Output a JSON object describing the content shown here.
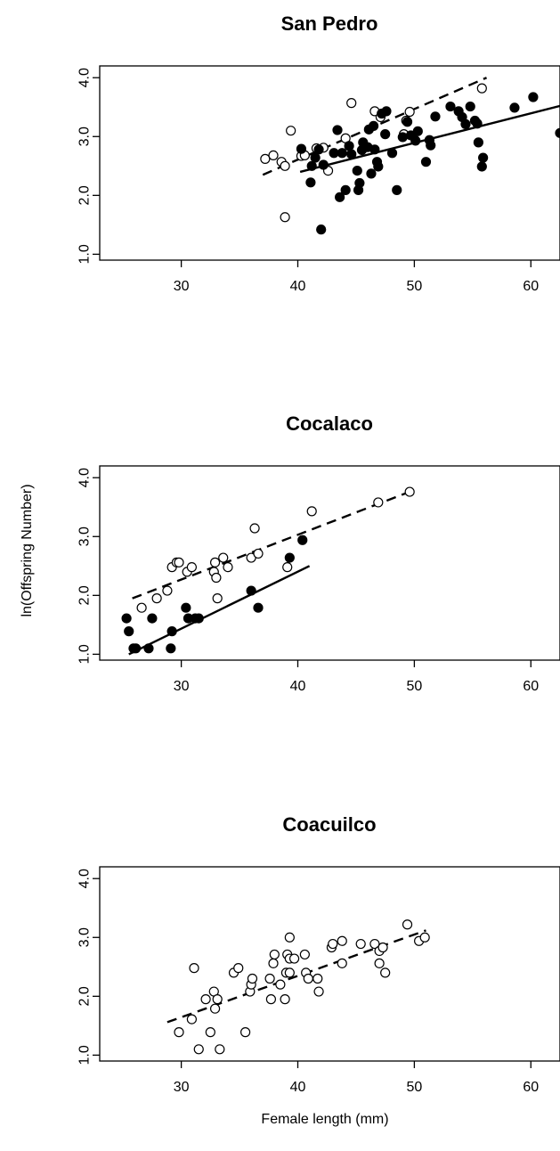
{
  "figure": {
    "ylabel": "ln(Offspring Number)",
    "xlabel": "Female length (mm)"
  },
  "chart_data": [
    {
      "type": "scatter",
      "title": "San Pedro",
      "xlim": [
        23,
        62.5
      ],
      "ylim": [
        0.9,
        4.2
      ],
      "xticks": [
        30,
        40,
        50,
        60
      ],
      "yticks": [
        1.0,
        2.0,
        3.0,
        4.0
      ],
      "ytick_labels": [
        "1.0",
        "2.0",
        "3.0",
        "4.0"
      ],
      "series": [
        {
          "marker": "open",
          "points": [
            [
              37.2,
              2.62
            ],
            [
              37.9,
              2.68
            ],
            [
              38.6,
              2.57
            ],
            [
              38.9,
              2.5
            ],
            [
              38.9,
              1.63
            ],
            [
              39.4,
              3.1
            ],
            [
              40.3,
              2.67
            ],
            [
              40.6,
              2.68
            ],
            [
              41.6,
              2.8
            ],
            [
              42.2,
              2.81
            ],
            [
              42.6,
              2.42
            ],
            [
              44.1,
              2.97
            ],
            [
              44.6,
              3.57
            ],
            [
              46.6,
              3.43
            ],
            [
              47.1,
              3.33
            ],
            [
              49.1,
              3.04
            ],
            [
              49.3,
              3.27
            ],
            [
              49.6,
              3.42
            ],
            [
              55.8,
              3.82
            ]
          ]
        },
        {
          "marker": "filled",
          "points": [
            [
              40.3,
              2.79
            ],
            [
              41.1,
              2.22
            ],
            [
              41.2,
              2.5
            ],
            [
              41.5,
              2.64
            ],
            [
              41.8,
              2.78
            ],
            [
              42.0,
              1.42
            ],
            [
              42.2,
              2.52
            ],
            [
              43.1,
              2.72
            ],
            [
              43.4,
              3.11
            ],
            [
              43.6,
              1.97
            ],
            [
              43.8,
              2.72
            ],
            [
              44.1,
              2.09
            ],
            [
              44.4,
              2.84
            ],
            [
              44.6,
              2.7
            ],
            [
              45.1,
              2.42
            ],
            [
              45.2,
              2.09
            ],
            [
              45.3,
              2.21
            ],
            [
              45.5,
              2.77
            ],
            [
              45.6,
              2.9
            ],
            [
              46.0,
              2.82
            ],
            [
              46.1,
              3.12
            ],
            [
              46.3,
              2.37
            ],
            [
              46.5,
              3.18
            ],
            [
              46.6,
              2.78
            ],
            [
              46.8,
              2.57
            ],
            [
              46.9,
              2.49
            ],
            [
              47.2,
              3.39
            ],
            [
              47.5,
              3.04
            ],
            [
              47.6,
              3.43
            ],
            [
              48.1,
              2.72
            ],
            [
              48.5,
              2.09
            ],
            [
              49.0,
              2.99
            ],
            [
              49.4,
              3.25
            ],
            [
              49.7,
              3.02
            ],
            [
              50.1,
              2.93
            ],
            [
              50.3,
              3.09
            ],
            [
              51.0,
              2.57
            ],
            [
              51.3,
              2.94
            ],
            [
              51.4,
              2.85
            ],
            [
              51.8,
              3.34
            ],
            [
              53.1,
              3.51
            ],
            [
              53.8,
              3.43
            ],
            [
              54.1,
              3.33
            ],
            [
              54.4,
              3.21
            ],
            [
              54.8,
              3.51
            ],
            [
              55.2,
              3.27
            ],
            [
              55.4,
              3.22
            ],
            [
              55.5,
              2.9
            ],
            [
              55.8,
              2.49
            ],
            [
              55.9,
              2.64
            ],
            [
              58.6,
              3.49
            ],
            [
              60.2,
              3.67
            ],
            [
              62.5,
              3.06
            ]
          ]
        }
      ],
      "fits": [
        {
          "style": "dashed",
          "from": [
            37.0,
            2.35
          ],
          "to": [
            56.2,
            4.0
          ]
        },
        {
          "style": "solid",
          "from": [
            40.2,
            2.4
          ],
          "to": [
            62.5,
            3.52
          ]
        }
      ]
    },
    {
      "type": "scatter",
      "title": "Cocalaco",
      "xlim": [
        23,
        62.5
      ],
      "ylim": [
        0.9,
        4.2
      ],
      "xticks": [
        30,
        40,
        50,
        60
      ],
      "yticks": [
        1.0,
        2.0,
        3.0,
        4.0
      ],
      "ytick_labels": [
        "1.0",
        "2.0",
        "3.0",
        "4.0"
      ],
      "series": [
        {
          "marker": "open",
          "points": [
            [
              26.6,
              1.79
            ],
            [
              27.9,
              1.95
            ],
            [
              28.8,
              2.08
            ],
            [
              29.2,
              2.48
            ],
            [
              29.6,
              2.56
            ],
            [
              29.8,
              2.56
            ],
            [
              30.5,
              2.4
            ],
            [
              30.9,
              2.48
            ],
            [
              32.8,
              2.4
            ],
            [
              32.9,
              2.56
            ],
            [
              33.0,
              2.3
            ],
            [
              33.1,
              1.95
            ],
            [
              33.6,
              2.64
            ],
            [
              34.0,
              2.48
            ],
            [
              36.0,
              2.64
            ],
            [
              36.3,
              3.14
            ],
            [
              36.6,
              2.71
            ],
            [
              39.1,
              2.48
            ],
            [
              41.2,
              3.43
            ],
            [
              46.9,
              3.58
            ],
            [
              49.6,
              3.76
            ]
          ]
        },
        {
          "marker": "filled",
          "points": [
            [
              25.3,
              1.61
            ],
            [
              25.5,
              1.39
            ],
            [
              25.9,
              1.1
            ],
            [
              26.1,
              1.1
            ],
            [
              27.2,
              1.1
            ],
            [
              27.5,
              1.61
            ],
            [
              29.1,
              1.1
            ],
            [
              29.2,
              1.39
            ],
            [
              30.4,
              1.79
            ],
            [
              30.6,
              1.61
            ],
            [
              31.2,
              1.61
            ],
            [
              31.5,
              1.61
            ],
            [
              36.0,
              2.08
            ],
            [
              36.6,
              1.79
            ],
            [
              39.3,
              2.64
            ],
            [
              40.4,
              2.94
            ]
          ]
        }
      ],
      "fits": [
        {
          "style": "dashed",
          "from": [
            25.8,
            1.95
          ],
          "to": [
            49.6,
            3.76
          ]
        },
        {
          "style": "solid",
          "from": [
            25.5,
            1.0
          ],
          "to": [
            41.0,
            2.5
          ]
        }
      ]
    },
    {
      "type": "scatter",
      "title": "Coacuilco",
      "xlim": [
        23,
        62.5
      ],
      "ylim": [
        0.9,
        4.2
      ],
      "xticks": [
        30,
        40,
        50,
        60
      ],
      "yticks": [
        1.0,
        2.0,
        3.0,
        4.0
      ],
      "ytick_labels": [
        "1.0",
        "2.0",
        "3.0",
        "4.0"
      ],
      "series": [
        {
          "marker": "open",
          "points": [
            [
              29.8,
              1.39
            ],
            [
              30.9,
              1.61
            ],
            [
              31.1,
              2.48
            ],
            [
              31.5,
              1.1
            ],
            [
              32.1,
              1.95
            ],
            [
              32.5,
              1.39
            ],
            [
              32.8,
              2.08
            ],
            [
              32.9,
              1.79
            ],
            [
              33.1,
              1.95
            ],
            [
              33.3,
              1.1
            ],
            [
              34.5,
              2.4
            ],
            [
              34.9,
              2.48
            ],
            [
              35.5,
              1.39
            ],
            [
              35.9,
              2.08
            ],
            [
              36.0,
              2.2
            ],
            [
              36.1,
              2.3
            ],
            [
              37.6,
              2.3
            ],
            [
              37.7,
              1.95
            ],
            [
              37.9,
              2.56
            ],
            [
              38.0,
              2.71
            ],
            [
              38.5,
              2.2
            ],
            [
              38.9,
              1.95
            ],
            [
              39.0,
              2.4
            ],
            [
              39.1,
              2.71
            ],
            [
              39.3,
              2.4
            ],
            [
              39.3,
              2.64
            ],
            [
              39.3,
              3.0
            ],
            [
              39.7,
              2.64
            ],
            [
              40.6,
              2.71
            ],
            [
              40.7,
              2.4
            ],
            [
              40.9,
              2.3
            ],
            [
              41.7,
              2.3
            ],
            [
              41.8,
              2.08
            ],
            [
              42.9,
              2.83
            ],
            [
              43.0,
              2.89
            ],
            [
              43.8,
              2.94
            ],
            [
              43.8,
              2.56
            ],
            [
              45.4,
              2.89
            ],
            [
              46.6,
              2.89
            ],
            [
              47.0,
              2.77
            ],
            [
              47.0,
              2.56
            ],
            [
              47.3,
              2.83
            ],
            [
              47.5,
              2.4
            ],
            [
              49.4,
              3.22
            ],
            [
              50.4,
              2.94
            ],
            [
              50.9,
              3.0
            ]
          ]
        }
      ],
      "fits": [
        {
          "style": "dashed",
          "from": [
            28.8,
            1.56
          ],
          "to": [
            51.0,
            3.12
          ]
        }
      ]
    }
  ]
}
